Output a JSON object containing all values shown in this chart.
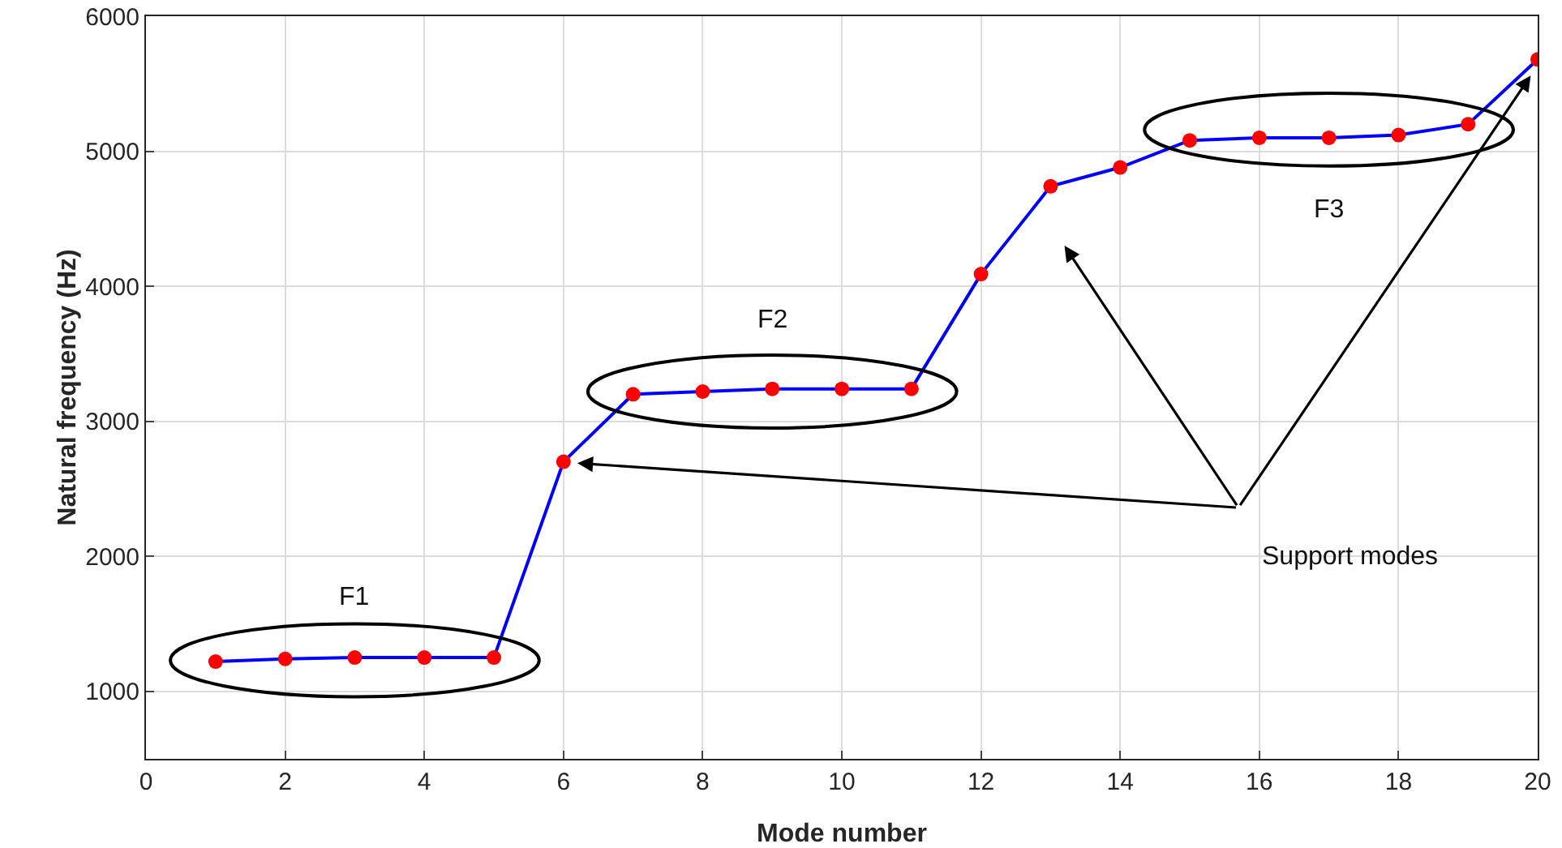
{
  "chart_data": {
    "type": "line",
    "xlabel": "Mode number",
    "ylabel": "Natural frequency (Hz)",
    "x": [
      1,
      2,
      3,
      4,
      5,
      6,
      7,
      8,
      9,
      10,
      11,
      12,
      13,
      14,
      15,
      16,
      17,
      18,
      19,
      20
    ],
    "series": [
      {
        "color": "#0000ff",
        "colors": [
          "#ff0000",
          "#ff0000",
          "#ff0000",
          "#ff0000",
          "#ff0000",
          "#ff0000",
          "#ff0000",
          "#ff0000",
          "#ff0000",
          "#ff0000",
          "#ff0000",
          "#ff0000",
          "#ff0000",
          "#ff0000",
          "#ff0000",
          "#ff0000",
          "#ff0000",
          "#ff0000",
          "#ff0000",
          "#ff0000"
        ],
        "values": [
          1220,
          1240,
          1250,
          1250,
          1250,
          2700,
          3200,
          3220,
          3240,
          3240,
          3240,
          4090,
          4740,
          4880,
          5080,
          5100,
          5100,
          5120,
          5200,
          5680
        ]
      }
    ],
    "xlim": [
      0,
      20
    ],
    "xticks": [
      0,
      2,
      4,
      6,
      8,
      10,
      12,
      14,
      16,
      18,
      20
    ],
    "ylim": [
      500,
      6000
    ],
    "yticks": [
      1000,
      2000,
      3000,
      4000,
      5000,
      6000
    ],
    "grid": true,
    "marker": "circle",
    "line_style": "solid",
    "annotations": [
      "F1",
      "F2",
      "F3",
      "Support modes"
    ]
  }
}
